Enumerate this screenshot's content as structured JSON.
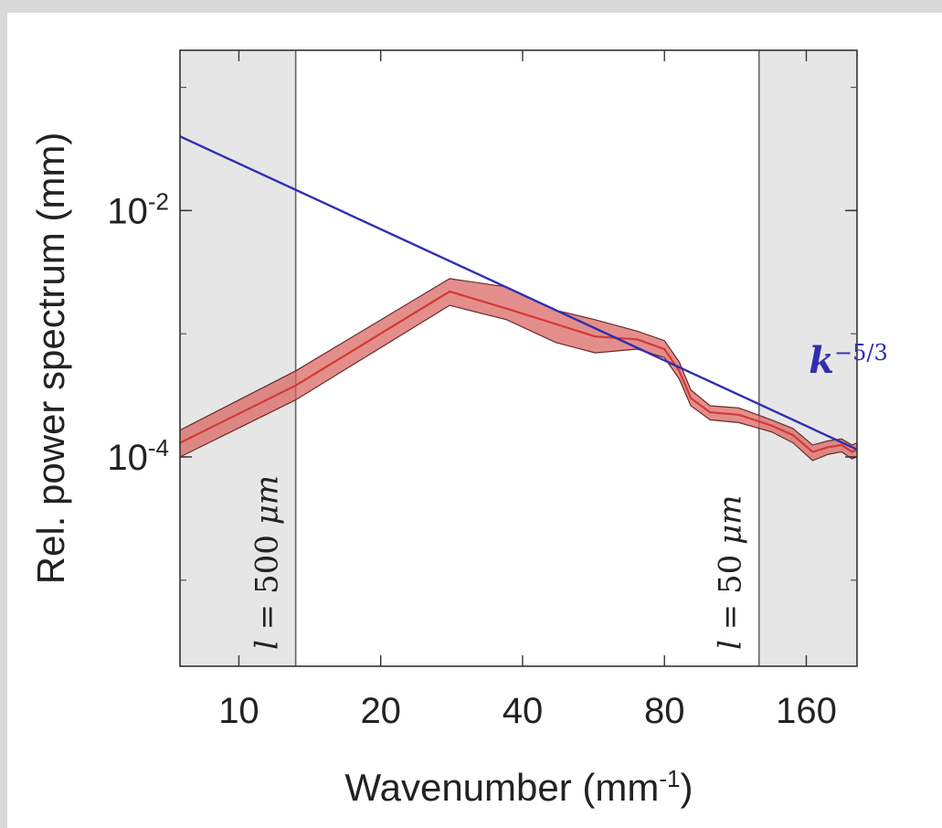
{
  "chart_data": {
    "type": "line",
    "title": "",
    "xlabel": "Wavenumber (mm",
    "xlabel_sup": "-1",
    "xlabel_end": ")",
    "ylabel": "Rel. power spectrum (mm)",
    "xscale": "log",
    "yscale": "log",
    "xlim": [
      7.5,
      205
    ],
    "ylim": [
      2e-06,
      0.2
    ],
    "grid": false,
    "x_ticks": [
      10,
      20,
      40,
      80,
      160
    ],
    "x_tick_labels": [
      "10",
      "20",
      "40",
      "80",
      "160"
    ],
    "y_ticks": [
      0.01,
      0.0001
    ],
    "y_tick_base": "10",
    "y_tick_exponents": [
      "-2",
      "-4"
    ],
    "shaded_regions": [
      {
        "x_from": 7.5,
        "x_to": 13.2,
        "label_var": "l",
        "label_eq": " = 500 ",
        "label_unit": "μm",
        "color": "#e6e6e6"
      },
      {
        "x_from": 127,
        "x_to": 205,
        "label_var": "l",
        "label_eq": " = 50 ",
        "label_unit": "μm",
        "color": "#e6e6e6"
      }
    ],
    "series": [
      {
        "name": "",
        "color": "#d23a36",
        "band_color": "#d9625f",
        "x": [
          7.5,
          13.2,
          28,
          37,
          47,
          57,
          70,
          80,
          86,
          91,
          100,
          115,
          135,
          150,
          165,
          178,
          190,
          200,
          205
        ],
        "y": [
          0.00013,
          0.00038,
          0.0022,
          0.0016,
          0.0012,
          0.00095,
          0.0009,
          0.00075,
          0.0005,
          0.0003,
          0.00023,
          0.00022,
          0.00018,
          0.00015,
          0.00011,
          0.00012,
          0.000125,
          0.00011,
          0.000115
        ],
        "y_lower": [
          0.0001,
          0.00029,
          0.0017,
          0.0013,
          0.00085,
          0.0007,
          0.00075,
          0.00064,
          0.00043,
          0.00026,
          0.0002,
          0.00019,
          0.00016,
          0.00013,
          9.35e-05,
          0.000105,
          0.00011,
          9.65e-05,
          0.0001
        ],
        "y_upper": [
          0.000165,
          0.0005,
          0.0028,
          0.0024,
          0.00155,
          0.0013,
          0.00105,
          0.00088,
          0.00059,
          0.00035,
          0.00026,
          0.00025,
          0.0002,
          0.00017,
          0.000125,
          0.000135,
          0.00014,
          0.000125,
          0.00013
        ]
      },
      {
        "name": "k^-5/3",
        "color": "#2f2fb0",
        "x": [
          7.5,
          205
        ],
        "y": [
          0.04,
          0.000115
        ],
        "label_base": "k",
        "label_exp": "−5/3",
        "label_x": 162,
        "label_y": 0.00048
      }
    ]
  }
}
